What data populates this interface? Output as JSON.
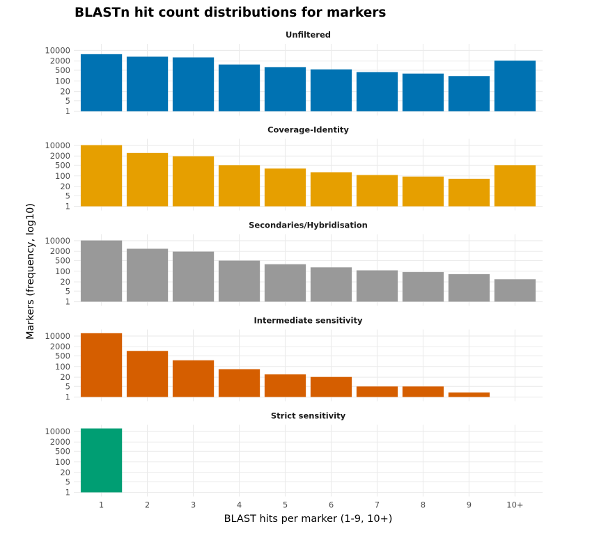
{
  "chart_data": {
    "type": "bar",
    "title": "BLASTn hit count distributions for markers",
    "xlabel": "BLAST hits per marker (1-9, 10+)",
    "ylabel": "Markers (frequency, log10)",
    "yscale": "log10",
    "ylim": [
      1,
      10000
    ],
    "y_ticks": [
      1,
      5,
      20,
      100,
      500,
      2000,
      10000
    ],
    "y_tick_labels": [
      "1",
      "5",
      "20",
      "100",
      "500",
      "2000",
      "10000"
    ],
    "categories": [
      "1",
      "2",
      "3",
      "4",
      "5",
      "6",
      "7",
      "8",
      "9",
      "10+"
    ],
    "grid": true,
    "legend": "none",
    "facets": [
      {
        "name": "Unfiltered",
        "color": "#0072B2",
        "values": [
          5700,
          3900,
          3500,
          1200,
          810,
          575,
          380,
          305,
          210,
          2150
        ]
      },
      {
        "name": "Coverage-Identity",
        "color": "#E69F00",
        "values": [
          10500,
          3200,
          1960,
          510,
          305,
          175,
          115,
          91,
          65,
          510
        ]
      },
      {
        "name": "Secondaries/Hybridisation",
        "color": "#999999",
        "values": [
          10500,
          3000,
          1950,
          500,
          290,
          180,
          115,
          89,
          65,
          30
        ]
      },
      {
        "name": "Intermediate sensitivity",
        "color": "#D55E00",
        "values": [
          15500,
          1070,
          260,
          68,
          31,
          21,
          5,
          5,
          2,
          0
        ]
      },
      {
        "name": "Strict sensitivity",
        "color": "#009E73",
        "values": [
          15800,
          0,
          0,
          0,
          0,
          0,
          0,
          0,
          0,
          0
        ]
      }
    ]
  }
}
